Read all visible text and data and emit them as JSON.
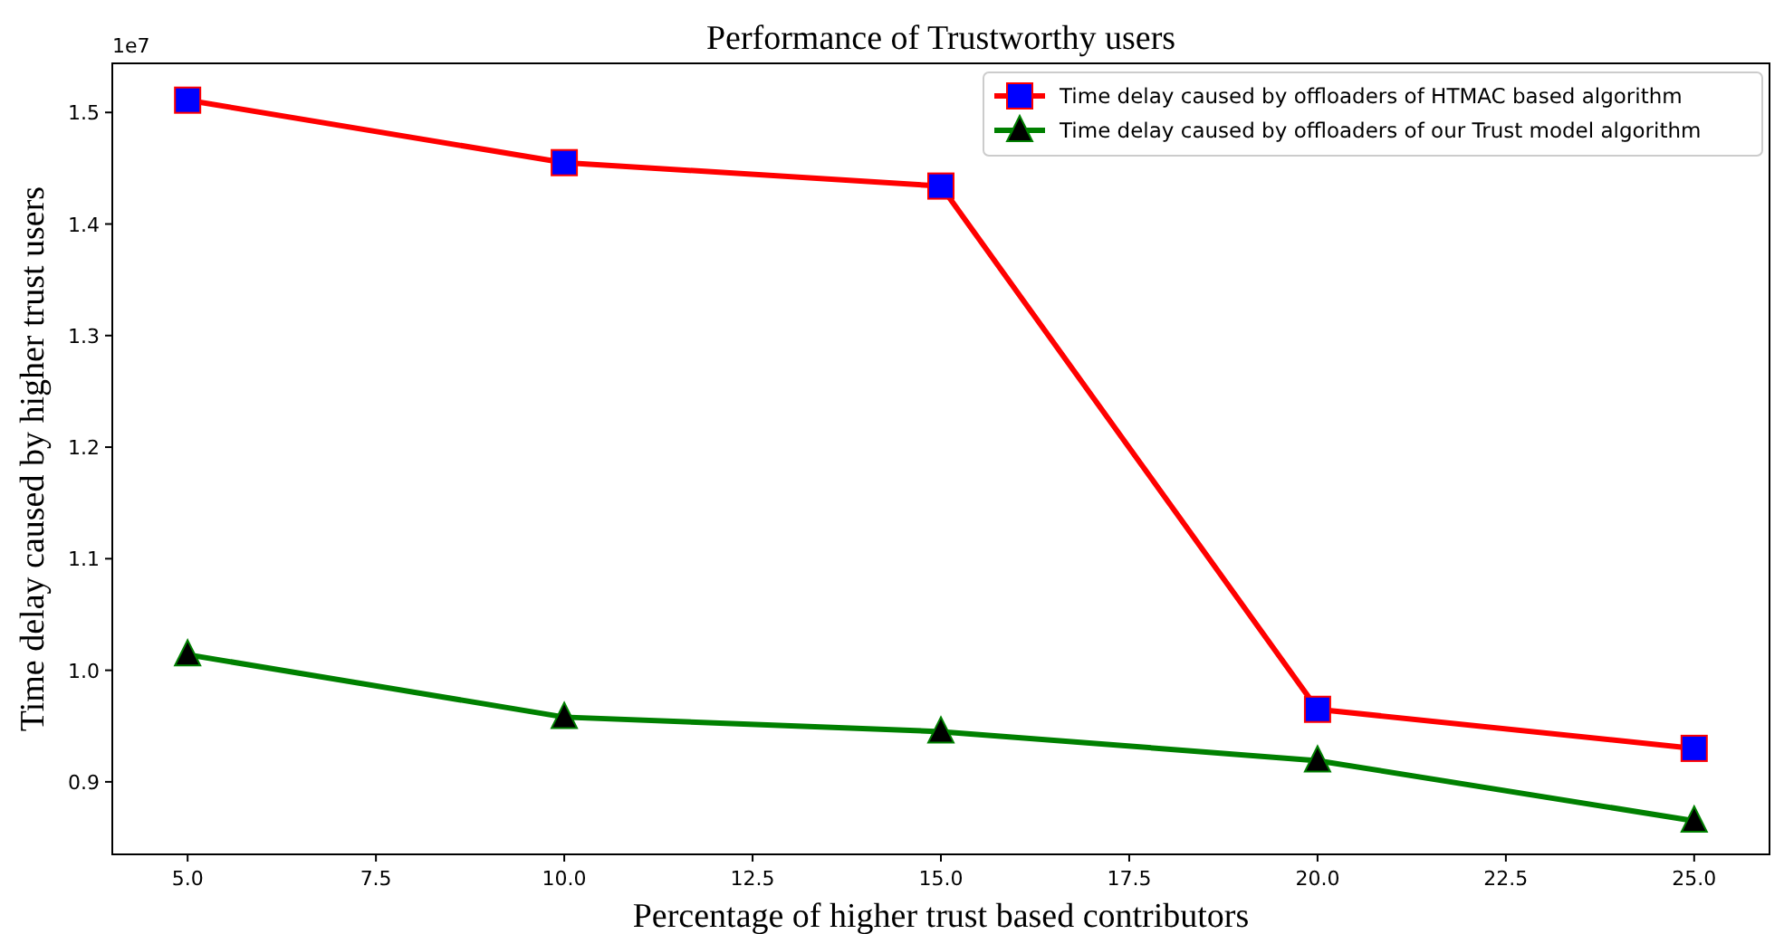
{
  "chart_data": {
    "type": "line",
    "title": "Performance of Trustworthy users",
    "xlabel": "Percentage of higher trust based contributors",
    "ylabel": "Time delay caused by higher trust users",
    "annotations": [
      "1e7"
    ],
    "x": [
      5,
      10,
      15,
      20,
      25
    ],
    "series": [
      {
        "name": "Time delay caused by offloaders of HTMAC based algorithm",
        "color": "#ff0000",
        "marker": "square",
        "values": [
          1.511,
          1.455,
          1.434,
          0.965,
          0.93
        ]
      },
      {
        "name": "Time delay caused by offloaders of our Trust model algorithm",
        "color": "#008000",
        "marker": "triangle",
        "values": [
          1.014,
          0.958,
          0.945,
          0.919,
          0.865
        ]
      }
    ],
    "xlim": [
      4,
      26
    ],
    "xticks": [
      {
        "value": 5,
        "label": "5.0"
      },
      {
        "value": 7.5,
        "label": "7.5"
      },
      {
        "value": 10,
        "label": "10.0"
      },
      {
        "value": 12.5,
        "label": "12.5"
      },
      {
        "value": 15,
        "label": "15.0"
      },
      {
        "value": 17.5,
        "label": "17.5"
      },
      {
        "value": 20,
        "label": "20.0"
      },
      {
        "value": 22.5,
        "label": "22.5"
      },
      {
        "value": 25,
        "label": "25.0"
      }
    ],
    "ylim": [
      0.835,
      1.544
    ],
    "yticks": [
      {
        "value": 0.9,
        "label": "0.9"
      },
      {
        "value": 1.0,
        "label": "1.0"
      },
      {
        "value": 1.1,
        "label": "1.1"
      },
      {
        "value": 1.2,
        "label": "1.2"
      },
      {
        "value": 1.3,
        "label": "1.3"
      },
      {
        "value": 1.4,
        "label": "1.4"
      },
      {
        "value": 1.5,
        "label": "1.5"
      }
    ],
    "grid": false,
    "legend": "top right",
    "line_style": "solid"
  }
}
